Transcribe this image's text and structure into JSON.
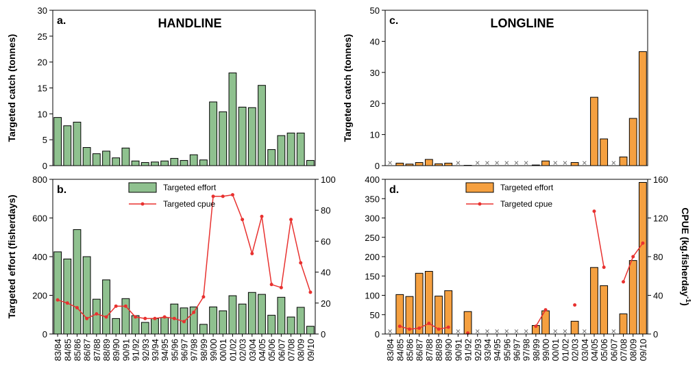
{
  "chart_data": [
    {
      "type": "bar",
      "label": "a.",
      "title": "HANDLINE",
      "ylabel": "Targeted catch (tonnes)",
      "ylim": [
        0,
        30
      ],
      "yticks": [
        0,
        5,
        10,
        15,
        20,
        25,
        30
      ],
      "series": [
        {
          "color": "#8fc18f",
          "values": [
            9.3,
            7.7,
            8.4,
            3.5,
            2.3,
            2.8,
            1.5,
            3.4,
            0.9,
            0.6,
            0.7,
            0.9,
            1.4,
            1.0,
            2.1,
            1.1,
            12.3,
            10.4,
            17.9,
            11.3,
            11.2,
            15.5,
            3.1,
            5.8,
            6.3,
            6.3,
            1.0
          ]
        }
      ]
    },
    {
      "type": "combo",
      "label": "b.",
      "ylabel": "Targeted effort (fisherdays)",
      "ylim": [
        0,
        800
      ],
      "yticks": [
        0,
        200,
        400,
        600,
        800
      ],
      "y2lim": [
        0,
        100
      ],
      "y2ticks": [
        0,
        20,
        40,
        60,
        80,
        100
      ],
      "categories": [
        "83/84",
        "84/85",
        "85/86",
        "86/87",
        "87/88",
        "88/89",
        "89/90",
        "90/91",
        "91/92",
        "92/93",
        "93/94",
        "94/95",
        "95/96",
        "96/97",
        "97/98",
        "98/99",
        "99/00",
        "00/01",
        "01/02",
        "02/03",
        "03/04",
        "04/05",
        "05/06",
        "06/07",
        "07/08",
        "08/09",
        "09/10"
      ],
      "series": [
        {
          "name": "Targeted effort",
          "color": "#8fc18f",
          "values": [
            425,
            388,
            540,
            400,
            180,
            280,
            80,
            183,
            95,
            60,
            80,
            85,
            155,
            135,
            140,
            50,
            140,
            120,
            198,
            155,
            215,
            205,
            97,
            190,
            88,
            138,
            40
          ]
        },
        {
          "name": "Targeted cpue",
          "color": "#e8312f",
          "axis": "y2",
          "values": [
            22,
            20,
            17,
            10,
            13,
            11,
            18,
            18,
            11,
            10,
            10,
            11,
            10,
            8,
            14,
            24,
            89,
            89,
            90,
            74,
            52,
            76,
            32,
            30,
            74,
            46,
            27
          ]
        }
      ]
    },
    {
      "type": "bar",
      "label": "c.",
      "title": "LONGLINE",
      "ylabel": "Targeted catch (tonnes)",
      "ylim": [
        0,
        50
      ],
      "yticks": [
        0,
        10,
        20,
        30,
        40,
        50
      ],
      "series": [
        {
          "color": "#f5a040",
          "values": [
            null,
            0.8,
            0.5,
            1.0,
            2.0,
            0.6,
            0.8,
            null,
            0.1,
            null,
            null,
            null,
            null,
            null,
            null,
            0.2,
            1.5,
            null,
            null,
            1.0,
            null,
            22,
            8.6,
            null,
            2.8,
            15.2,
            36.7
          ]
        }
      ]
    },
    {
      "type": "combo",
      "label": "d.",
      "y2label": "CPUE (kg.fisherday",
      "y2label_sup": "-1",
      "y2label_end": ")",
      "ylim": [
        0,
        400
      ],
      "yticks": [
        0,
        50,
        100,
        150,
        200,
        250,
        300,
        350,
        400
      ],
      "y2lim": [
        0,
        160
      ],
      "y2ticks": [
        0,
        40,
        80,
        120,
        160
      ],
      "categories": [
        "83/84",
        "84/85",
        "85/86",
        "86/87",
        "87/88",
        "88/89",
        "89/90",
        "90/91",
        "91/92",
        "92/93",
        "93/94",
        "94/95",
        "95/96",
        "96/97",
        "97/98",
        "98/99",
        "99/00",
        "00/01",
        "01/02",
        "02/03",
        "03/04",
        "04/05",
        "05/06",
        "06/07",
        "07/08",
        "08/09",
        "09/10"
      ],
      "series": [
        {
          "name": "Targeted effort",
          "color": "#f5a040",
          "values": [
            null,
            102,
            97,
            157,
            162,
            98,
            112,
            null,
            58,
            null,
            null,
            null,
            null,
            null,
            null,
            22,
            60,
            null,
            null,
            33,
            null,
            172,
            125,
            null,
            52,
            190,
            392
          ]
        },
        {
          "name": "Targeted cpue",
          "color": "#e8312f",
          "axis": "y2",
          "values": [
            null,
            8,
            5,
            6,
            11,
            5,
            7,
            null,
            1,
            null,
            null,
            null,
            null,
            null,
            null,
            8,
            25,
            null,
            null,
            30,
            null,
            127,
            69,
            null,
            54,
            80,
            94
          ]
        }
      ]
    }
  ]
}
